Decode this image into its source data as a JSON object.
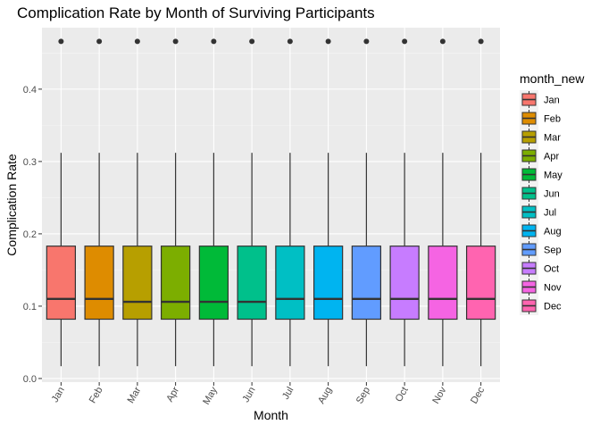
{
  "chart_data": {
    "type": "box",
    "title": "Complication Rate by Month of Surviving Participants",
    "xlabel": "Month",
    "ylabel": "Complication Rate",
    "ylim": [
      -0.005,
      0.485
    ],
    "yticks": [
      0.0,
      0.1,
      0.2,
      0.3,
      0.4
    ],
    "ytick_labels": [
      "0.0",
      "0.1",
      "0.2",
      "0.3",
      "0.4"
    ],
    "grid": true,
    "legend": {
      "title": "month_new",
      "placement": "right",
      "entries": [
        "Jan",
        "Feb",
        "Mar",
        "Apr",
        "May",
        "Jun",
        "Jul",
        "Aug",
        "Sep",
        "Oct",
        "Nov",
        "Dec"
      ]
    },
    "categories": [
      "Jan",
      "Feb",
      "Mar",
      "Apr",
      "May",
      "Jun",
      "Jul",
      "Aug",
      "Sep",
      "Oct",
      "Nov",
      "Dec"
    ],
    "colors": [
      "#F8766D",
      "#DE8C00",
      "#B79F00",
      "#7CAE00",
      "#00BA38",
      "#00C08B",
      "#00BFC4",
      "#00B4F0",
      "#619CFF",
      "#C77CFF",
      "#F564E3",
      "#FF64B0"
    ],
    "boxes": [
      {
        "category": "Jan",
        "min": 0.017,
        "q1": 0.082,
        "median": 0.11,
        "q3": 0.183,
        "max": 0.312,
        "outliers": [
          0.466
        ]
      },
      {
        "category": "Feb",
        "min": 0.017,
        "q1": 0.082,
        "median": 0.11,
        "q3": 0.183,
        "max": 0.312,
        "outliers": [
          0.466
        ]
      },
      {
        "category": "Mar",
        "min": 0.017,
        "q1": 0.082,
        "median": 0.106,
        "q3": 0.183,
        "max": 0.312,
        "outliers": [
          0.466
        ]
      },
      {
        "category": "Apr",
        "min": 0.017,
        "q1": 0.082,
        "median": 0.106,
        "q3": 0.183,
        "max": 0.312,
        "outliers": [
          0.466
        ]
      },
      {
        "category": "May",
        "min": 0.017,
        "q1": 0.082,
        "median": 0.106,
        "q3": 0.183,
        "max": 0.312,
        "outliers": [
          0.466
        ]
      },
      {
        "category": "Jun",
        "min": 0.017,
        "q1": 0.082,
        "median": 0.106,
        "q3": 0.183,
        "max": 0.312,
        "outliers": [
          0.466
        ]
      },
      {
        "category": "Jul",
        "min": 0.017,
        "q1": 0.082,
        "median": 0.11,
        "q3": 0.183,
        "max": 0.312,
        "outliers": [
          0.466
        ]
      },
      {
        "category": "Aug",
        "min": 0.017,
        "q1": 0.082,
        "median": 0.11,
        "q3": 0.183,
        "max": 0.312,
        "outliers": [
          0.466
        ]
      },
      {
        "category": "Sep",
        "min": 0.017,
        "q1": 0.082,
        "median": 0.11,
        "q3": 0.183,
        "max": 0.312,
        "outliers": [
          0.466
        ]
      },
      {
        "category": "Oct",
        "min": 0.017,
        "q1": 0.082,
        "median": 0.11,
        "q3": 0.183,
        "max": 0.312,
        "outliers": [
          0.466
        ]
      },
      {
        "category": "Nov",
        "min": 0.017,
        "q1": 0.082,
        "median": 0.11,
        "q3": 0.183,
        "max": 0.312,
        "outliers": [
          0.466
        ]
      },
      {
        "category": "Dec",
        "min": 0.017,
        "q1": 0.082,
        "median": 0.11,
        "q3": 0.183,
        "max": 0.312,
        "outliers": [
          0.466
        ]
      }
    ]
  }
}
